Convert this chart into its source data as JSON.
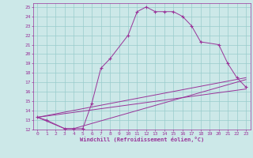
{
  "xlabel": "Windchill (Refroidissement éolien,°C)",
  "bg_color": "#cce8e8",
  "line_color": "#993399",
  "grid_color": "#99cccc",
  "xlim": [
    -0.5,
    23.5
  ],
  "ylim": [
    12,
    25.4
  ],
  "xticks": [
    0,
    1,
    2,
    3,
    4,
    5,
    6,
    7,
    8,
    9,
    10,
    11,
    12,
    13,
    14,
    15,
    16,
    17,
    18,
    19,
    20,
    21,
    22,
    23
  ],
  "yticks": [
    12,
    13,
    14,
    15,
    16,
    17,
    18,
    19,
    20,
    21,
    22,
    23,
    24,
    25
  ],
  "line1_x": [
    0,
    1,
    3,
    4,
    5,
    6,
    7,
    8,
    10,
    11,
    12,
    13,
    14,
    15,
    16,
    17,
    18,
    20,
    21,
    22,
    23
  ],
  "line1_y": [
    13.3,
    13.0,
    12.1,
    12.1,
    12.1,
    14.8,
    18.5,
    19.5,
    22.0,
    24.5,
    25.0,
    24.5,
    24.5,
    24.5,
    24.0,
    23.0,
    21.3,
    21.0,
    19.0,
    17.5,
    16.5
  ],
  "line2_x": [
    0,
    23
  ],
  "line2_y": [
    13.3,
    17.5
  ],
  "line3_x": [
    0,
    23
  ],
  "line3_y": [
    13.3,
    16.3
  ],
  "line4_x": [
    0,
    3,
    4,
    23
  ],
  "line4_y": [
    13.3,
    12.1,
    12.1,
    17.3
  ]
}
